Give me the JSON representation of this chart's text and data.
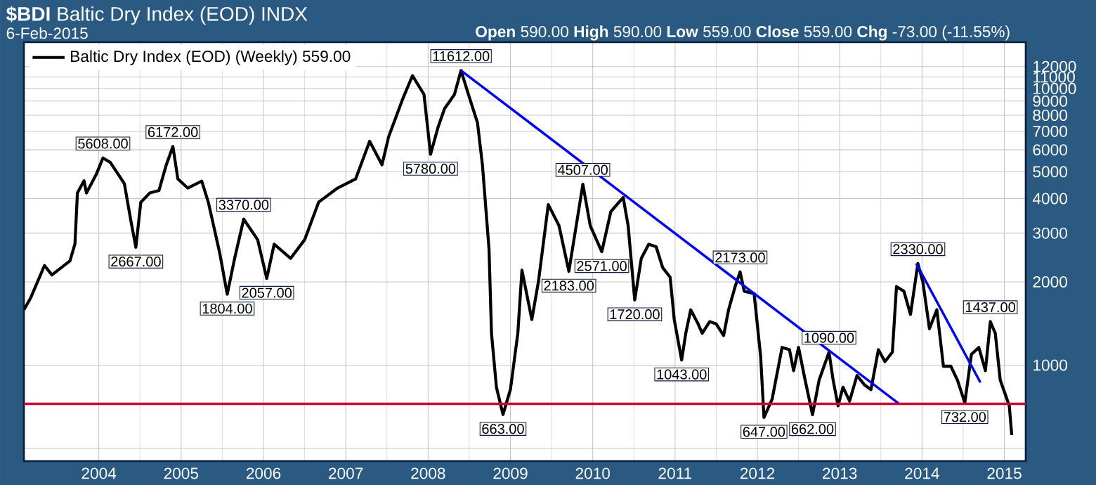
{
  "chart_data": {
    "type": "line",
    "title": "**$BDI** Baltic Dry Index (EOD) INDX",
    "subtitle": "6-Feb-2015",
    "annotations": [
      "**Open** 590.00 **High** 590.00 **Low** 559.00 **Close** 559.00 **Chg** -73.00 (-11.55%)",
      {
        "text": "5608.00",
        "x": 2004.05,
        "y": 5608
      },
      {
        "text": "2667.00",
        "x": 2004.45,
        "y": 2667
      },
      {
        "text": "6172.00",
        "x": 2004.9,
        "y": 6172
      },
      {
        "text": "1804.00",
        "x": 2005.56,
        "y": 1804
      },
      {
        "text": "3370.00",
        "x": 2005.76,
        "y": 3370
      },
      {
        "text": "2057.00",
        "x": 2006.04,
        "y": 2057
      },
      {
        "text": "5780.00",
        "x": 2008.03,
        "y": 5780
      },
      {
        "text": "11612.00",
        "x": 2008.4,
        "y": 11612
      },
      {
        "text": "663.00",
        "x": 2008.91,
        "y": 663
      },
      {
        "text": "2183.00",
        "x": 2009.71,
        "y": 2183
      },
      {
        "text": "4507.00",
        "x": 2009.88,
        "y": 4507
      },
      {
        "text": "2571.00",
        "x": 2010.11,
        "y": 2571
      },
      {
        "text": "1720.00",
        "x": 2010.51,
        "y": 1720
      },
      {
        "text": "1043.00",
        "x": 2011.08,
        "y": 1043
      },
      {
        "text": "2173.00",
        "x": 2011.79,
        "y": 2173
      },
      {
        "text": "647.00",
        "x": 2012.08,
        "y": 647
      },
      {
        "text": "662.00",
        "x": 2012.67,
        "y": 662
      },
      {
        "text": "1090.00",
        "x": 2012.87,
        "y": 1114
      },
      {
        "text": "2330.00",
        "x": 2013.95,
        "y": 2330
      },
      {
        "text": "732.00",
        "x": 2014.52,
        "y": 732
      },
      {
        "text": "1437.00",
        "x": 2014.83,
        "y": 1437
      }
    ],
    "series": [
      {
        "name": "Baltic Dry Index (EOD) (Weekly) 559.00",
        "color": "#000000",
        "x": [
          2003.09,
          2003.17,
          2003.34,
          2003.43,
          2003.65,
          2003.71,
          2003.74,
          2003.82,
          2003.85,
          2003.97,
          2004.05,
          2004.14,
          2004.31,
          2004.39,
          2004.45,
          2004.51,
          2004.62,
          2004.73,
          2004.82,
          2004.9,
          2004.96,
          2005.08,
          2005.25,
          2005.33,
          2005.42,
          2005.47,
          2005.56,
          2005.65,
          2005.76,
          2005.93,
          2006.04,
          2006.13,
          2006.33,
          2006.5,
          2006.67,
          2006.9,
          2007.12,
          2007.29,
          2007.44,
          2007.52,
          2007.69,
          2007.81,
          2007.95,
          2008.03,
          2008.12,
          2008.2,
          2008.32,
          2008.4,
          2008.49,
          2008.6,
          2008.66,
          2008.74,
          2008.77,
          2008.83,
          2008.91,
          2009.0,
          2009.09,
          2009.14,
          2009.26,
          2009.34,
          2009.46,
          2009.59,
          2009.71,
          2009.88,
          2009.97,
          2010.11,
          2010.22,
          2010.37,
          2010.43,
          2010.51,
          2010.59,
          2010.68,
          2010.77,
          2010.85,
          2010.94,
          2010.99,
          2011.08,
          2011.13,
          2011.19,
          2011.28,
          2011.33,
          2011.42,
          2011.5,
          2011.59,
          2011.65,
          2011.73,
          2011.79,
          2011.84,
          2011.96,
          2012.04,
          2012.08,
          2012.18,
          2012.3,
          2012.39,
          2012.44,
          2012.5,
          2012.58,
          2012.67,
          2012.75,
          2012.87,
          2012.92,
          2012.98,
          2013.04,
          2013.12,
          2013.21,
          2013.3,
          2013.38,
          2013.47,
          2013.55,
          2013.64,
          2013.69,
          2013.78,
          2013.86,
          2013.95,
          2014.01,
          2014.09,
          2014.18,
          2014.26,
          2014.35,
          2014.43,
          2014.52,
          2014.6,
          2014.69,
          2014.77,
          2014.83,
          2014.89,
          2014.95,
          2015.06,
          2015.09
        ],
        "values": [
          1585,
          1745,
          2291,
          2118,
          2382,
          2742,
          4190,
          4636,
          4190,
          4898,
          5608,
          5400,
          4530,
          3319,
          2667,
          3881,
          4190,
          4276,
          5297,
          6172,
          4710,
          4365,
          4624,
          3881,
          2951,
          2529,
          1804,
          2432,
          3370,
          2838,
          2057,
          2735,
          2432,
          2838,
          3881,
          4365,
          4710,
          6442,
          5297,
          6683,
          9141,
          11117,
          9506,
          5780,
          7228,
          8453,
          9506,
          11612,
          9506,
          7516,
          5297,
          2624,
          1303,
          832,
          663,
          816,
          1303,
          2203,
          1462,
          2000,
          3802,
          3192,
          2183,
          4507,
          3192,
          2571,
          3589,
          4036,
          3192,
          1720,
          2432,
          2735,
          2679,
          2249,
          2080,
          1462,
          1043,
          1303,
          1585,
          1409,
          1303,
          1436,
          1409,
          1279,
          1585,
          1923,
          2173,
          1849,
          1815,
          1072,
          647,
          755,
          1159,
          1137,
          955,
          1159,
          883,
          662,
          883,
          1114,
          883,
          713,
          832,
          741,
          917,
          849,
          816,
          1137,
          1030,
          1114,
          1923,
          1849,
          1524,
          2330,
          2000,
          1355,
          1585,
          991,
          991,
          883,
          732,
          1094,
          1159,
          955,
          1437,
          1303,
          883,
          713,
          559
        ]
      },
      {
        "color": "#0000ff",
        "x": [
          2008.4,
          2013.72
        ],
        "values": [
          11612,
          725
        ]
      },
      {
        "color": "#0000ff",
        "x": [
          2013.93,
          2014.71
        ],
        "values": [
          2330,
          865
        ]
      }
    ],
    "ref_lines": [
      {
        "axis": "y",
        "value": 725,
        "color": "#cc0033"
      }
    ],
    "log": "y",
    "xlim": [
      2003.09,
      2015.26
    ],
    "ylim": [
      450,
      14700
    ],
    "xticks": [
      2004,
      2005,
      2006,
      2007,
      2008,
      2009,
      2010,
      2011,
      2012,
      2013,
      2014,
      2015
    ],
    "yticks": [
      {
        "value": 500,
        "label": null
      },
      1000,
      2000,
      3000,
      4000,
      5000,
      6000,
      7000,
      8000,
      9000,
      10000,
      11000,
      12000
    ],
    "grid": true,
    "legend": "top left"
  }
}
